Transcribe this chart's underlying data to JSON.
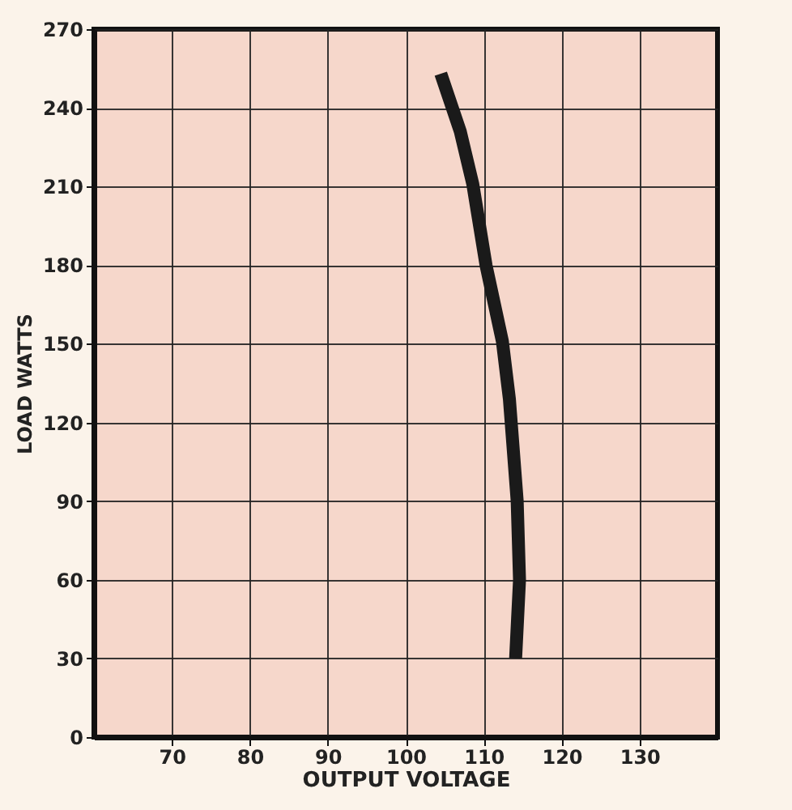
{
  "chart_data": {
    "type": "line",
    "xlabel": "OUTPUT VOLTAGE",
    "ylabel": "LOAD WATTS",
    "x": [
      104.5,
      107,
      108.6,
      110.3,
      112.4,
      113.3,
      114.3,
      114.6,
      114.1
    ],
    "series": [
      {
        "color": "#1a1a1a",
        "values": [
          253,
          231,
          211,
          180,
          151,
          129,
          90,
          60,
          30
        ]
      }
    ],
    "xlim": [
      60,
      140
    ],
    "xticks": [
      70,
      80,
      90,
      100,
      110,
      120,
      130
    ],
    "ylim": [
      0,
      270
    ],
    "yticks": [
      0,
      30,
      60,
      90,
      120,
      150,
      180,
      210,
      240,
      270
    ],
    "grid": true,
    "marker": "none",
    "line_style": "solid"
  }
}
